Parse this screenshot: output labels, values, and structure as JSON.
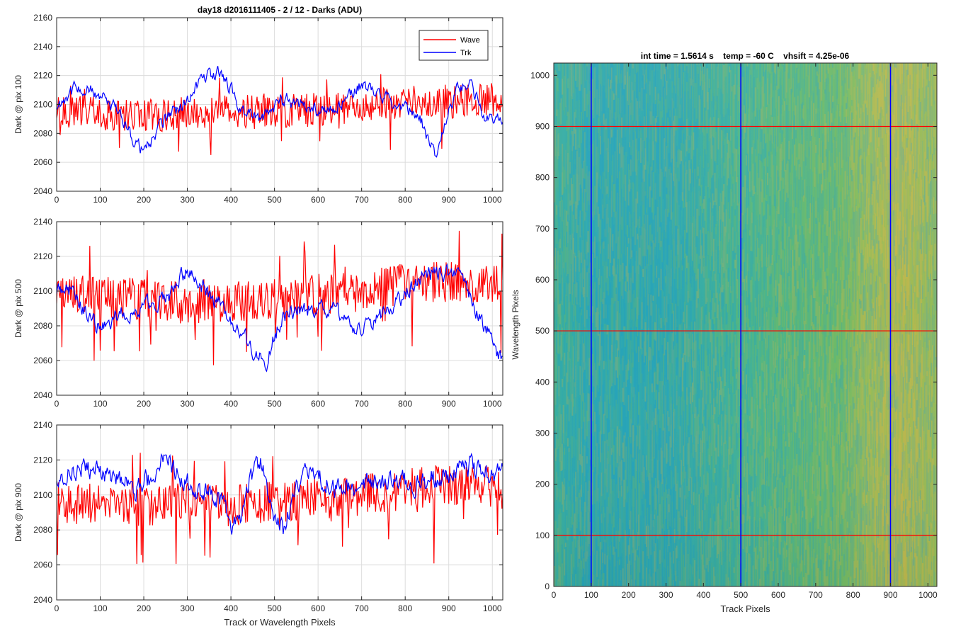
{
  "figure": {
    "title_left": "day18 d2016111405 - 2 / 12 - Darks (ADU)",
    "title_right": "int time = 1.5614 s    temp = -60 C    vhsift = 4.25e-06"
  },
  "chart_data": [
    {
      "type": "line",
      "title": "day18 d2016111405 - 2 / 12 - Darks (ADU)",
      "xlabel": "",
      "ylabel": "Dark @ pix 100",
      "xlim": [
        0,
        1024
      ],
      "ylim": [
        2040,
        2160
      ],
      "xticks": [
        0,
        100,
        200,
        300,
        400,
        500,
        600,
        700,
        800,
        900,
        1000
      ],
      "yticks": [
        2040,
        2060,
        2080,
        2100,
        2120,
        2140,
        2160
      ],
      "grid": true,
      "legend": {
        "placement": "top-right",
        "entries": [
          "Wave",
          "Trk"
        ]
      },
      "series": [
        {
          "name": "Wave",
          "color": "#ff0000",
          "x": [
            0,
            50,
            100,
            150,
            200,
            250,
            300,
            350,
            400,
            450,
            500,
            550,
            600,
            650,
            700,
            750,
            800,
            850,
            900,
            950,
            1000,
            1024
          ],
          "values": [
            2096,
            2095,
            2094,
            2093,
            2094,
            2093,
            2094,
            2095,
            2094,
            2095,
            2096,
            2096,
            2097,
            2098,
            2099,
            2100,
            2101,
            2101,
            2102,
            2103,
            2104,
            2103
          ],
          "noise": 12
        },
        {
          "name": "Trk",
          "color": "#0000ff",
          "x": [
            0,
            20,
            50,
            90,
            120,
            150,
            180,
            200,
            230,
            260,
            290,
            320,
            350,
            380,
            400,
            430,
            470,
            500,
            530,
            560,
            600,
            650,
            680,
            700,
            730,
            760,
            790,
            820,
            840,
            860,
            870,
            880,
            900,
            920,
            950,
            980,
            1000,
            1024
          ],
          "values": [
            2098,
            2106,
            2112,
            2108,
            2100,
            2092,
            2074,
            2068,
            2082,
            2094,
            2098,
            2114,
            2122,
            2120,
            2110,
            2094,
            2090,
            2100,
            2104,
            2099,
            2095,
            2100,
            2108,
            2113,
            2110,
            2103,
            2098,
            2096,
            2086,
            2070,
            2062,
            2072,
            2094,
            2110,
            2113,
            2094,
            2088,
            2092
          ],
          "noise": 4
        }
      ]
    },
    {
      "type": "line",
      "title": "",
      "xlabel": "",
      "ylabel": "Dark @ pix 500",
      "xlim": [
        0,
        1024
      ],
      "ylim": [
        2040,
        2140
      ],
      "xticks": [
        0,
        100,
        200,
        300,
        400,
        500,
        600,
        700,
        800,
        900,
        1000
      ],
      "yticks": [
        2040,
        2060,
        2080,
        2100,
        2120,
        2140
      ],
      "grid": true,
      "series": [
        {
          "name": "Wave",
          "color": "#ff0000",
          "x": [
            0,
            100,
            200,
            300,
            400,
            500,
            600,
            700,
            800,
            900,
            1000,
            1024
          ],
          "values": [
            2098,
            2097,
            2095,
            2093,
            2094,
            2096,
            2098,
            2100,
            2104,
            2105,
            2104,
            2102
          ],
          "noise": 12
        },
        {
          "name": "Trk",
          "color": "#0000ff",
          "x": [
            0,
            20,
            40,
            60,
            80,
            100,
            140,
            180,
            220,
            260,
            280,
            300,
            320,
            350,
            380,
            420,
            450,
            480,
            500,
            520,
            560,
            600,
            640,
            680,
            720,
            760,
            800,
            840,
            880,
            920,
            940,
            960,
            990,
            1010,
            1024
          ],
          "values": [
            2100,
            2104,
            2098,
            2090,
            2084,
            2078,
            2086,
            2088,
            2094,
            2098,
            2104,
            2114,
            2108,
            2098,
            2090,
            2076,
            2066,
            2058,
            2074,
            2086,
            2090,
            2090,
            2088,
            2078,
            2080,
            2088,
            2098,
            2108,
            2112,
            2108,
            2100,
            2090,
            2076,
            2064,
            2058
          ],
          "noise": 4
        }
      ]
    },
    {
      "type": "line",
      "title": "",
      "xlabel": "Track or Wavelength Pixels",
      "ylabel": "Dark @ pix 900",
      "xlim": [
        0,
        1024
      ],
      "ylim": [
        2040,
        2140
      ],
      "xticks": [
        0,
        100,
        200,
        300,
        400,
        500,
        600,
        700,
        800,
        900,
        1000
      ],
      "yticks": [
        2040,
        2060,
        2080,
        2100,
        2120,
        2140
      ],
      "grid": true,
      "series": [
        {
          "name": "Wave",
          "color": "#ff0000",
          "x": [
            0,
            100,
            200,
            300,
            400,
            500,
            600,
            700,
            800,
            900,
            1000,
            1024
          ],
          "values": [
            2096,
            2094,
            2094,
            2095,
            2094,
            2096,
            2098,
            2100,
            2103,
            2106,
            2105,
            2103
          ],
          "noise": 12
        },
        {
          "name": "Trk",
          "color": "#0000ff",
          "x": [
            0,
            30,
            60,
            100,
            140,
            180,
            220,
            240,
            260,
            290,
            320,
            350,
            380,
            400,
            420,
            440,
            470,
            500,
            520,
            540,
            560,
            600,
            640,
            700,
            760,
            820,
            880,
            920,
            950,
            980,
            1010,
            1024
          ],
          "values": [
            2110,
            2114,
            2116,
            2112,
            2110,
            2104,
            2110,
            2124,
            2118,
            2108,
            2104,
            2100,
            2096,
            2080,
            2084,
            2108,
            2118,
            2086,
            2080,
            2098,
            2110,
            2110,
            2104,
            2106,
            2108,
            2106,
            2110,
            2112,
            2118,
            2108,
            2112,
            2118
          ],
          "noise": 5
        }
      ]
    },
    {
      "type": "heatmap",
      "title": "int time = 1.5614 s    temp = -60 C    vhsift = 4.25e-06",
      "xlabel": "Track Pixels",
      "ylabel": "Wavelength Pixels",
      "xlim": [
        0,
        1024
      ],
      "ylim": [
        0,
        1024
      ],
      "xticks": [
        0,
        100,
        200,
        300,
        400,
        500,
        600,
        700,
        800,
        900,
        1000
      ],
      "yticks": [
        0,
        100,
        200,
        300,
        400,
        500,
        600,
        700,
        800,
        900,
        1000
      ],
      "colormap": [
        "#20a2c8",
        "#3cb2a4",
        "#7bbf5a",
        "#c8b74a"
      ],
      "overlay_vertical": {
        "color": "#0000ff",
        "x": [
          100,
          500,
          900
        ]
      },
      "overlay_horizontal": {
        "color": "#ff0000",
        "y": [
          100,
          500,
          900
        ]
      }
    }
  ]
}
